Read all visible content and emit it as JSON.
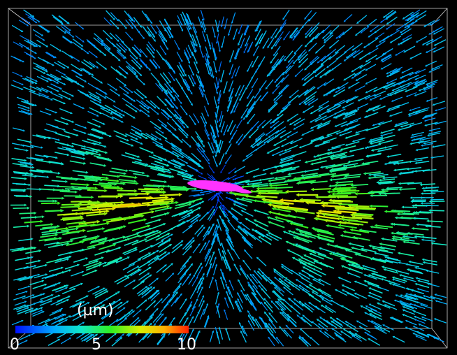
{
  "colorbar": {
    "unit_label": "(µm)",
    "tick_min": "0",
    "tick_mid": "5",
    "tick_max": "10",
    "colors": [
      "#0010ff",
      "#00a8ff",
      "#10e8c8",
      "#30f020",
      "#d8f000",
      "#ffb000",
      "#ff2000"
    ]
  },
  "scene": {
    "background": "#000000",
    "cell_color": "#ff33ff",
    "box_color": "#cfcfcf"
  }
}
